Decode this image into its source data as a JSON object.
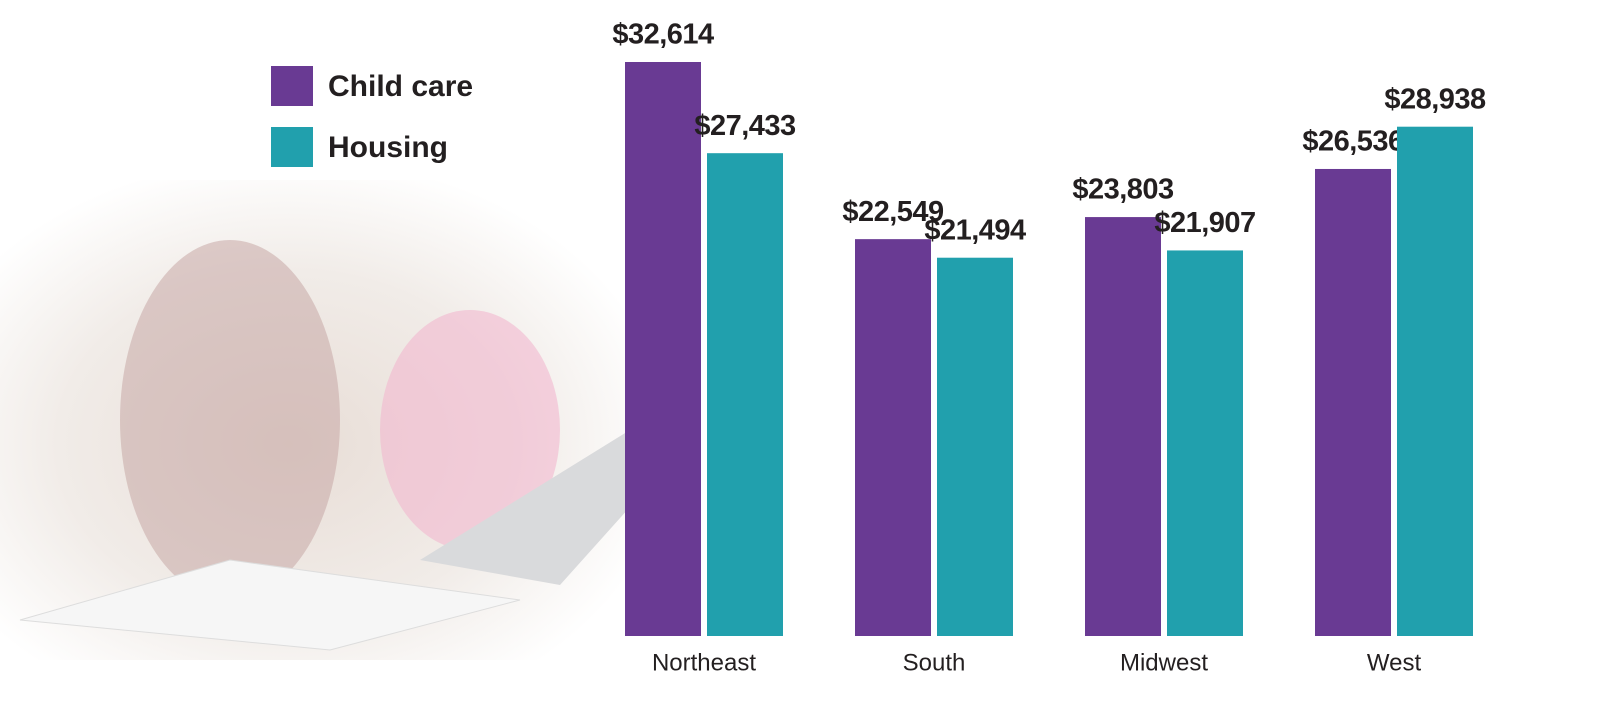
{
  "chart_data": {
    "type": "bar",
    "categories": [
      "Northeast",
      "South",
      "Midwest",
      "West"
    ],
    "series": [
      {
        "name": "Child care",
        "color": "#693a93",
        "values": [
          32614,
          22549,
          23803,
          26536
        ],
        "value_labels": [
          "$32,614",
          "$22,549",
          "$23,803",
          "$26,536"
        ]
      },
      {
        "name": "Housing",
        "color": "#21a0ad",
        "values": [
          27433,
          21494,
          21907,
          28938
        ],
        "value_labels": [
          "$27,433",
          "$21,494",
          "$21,907",
          "$28,938"
        ]
      }
    ],
    "legend": "top-left"
  }
}
